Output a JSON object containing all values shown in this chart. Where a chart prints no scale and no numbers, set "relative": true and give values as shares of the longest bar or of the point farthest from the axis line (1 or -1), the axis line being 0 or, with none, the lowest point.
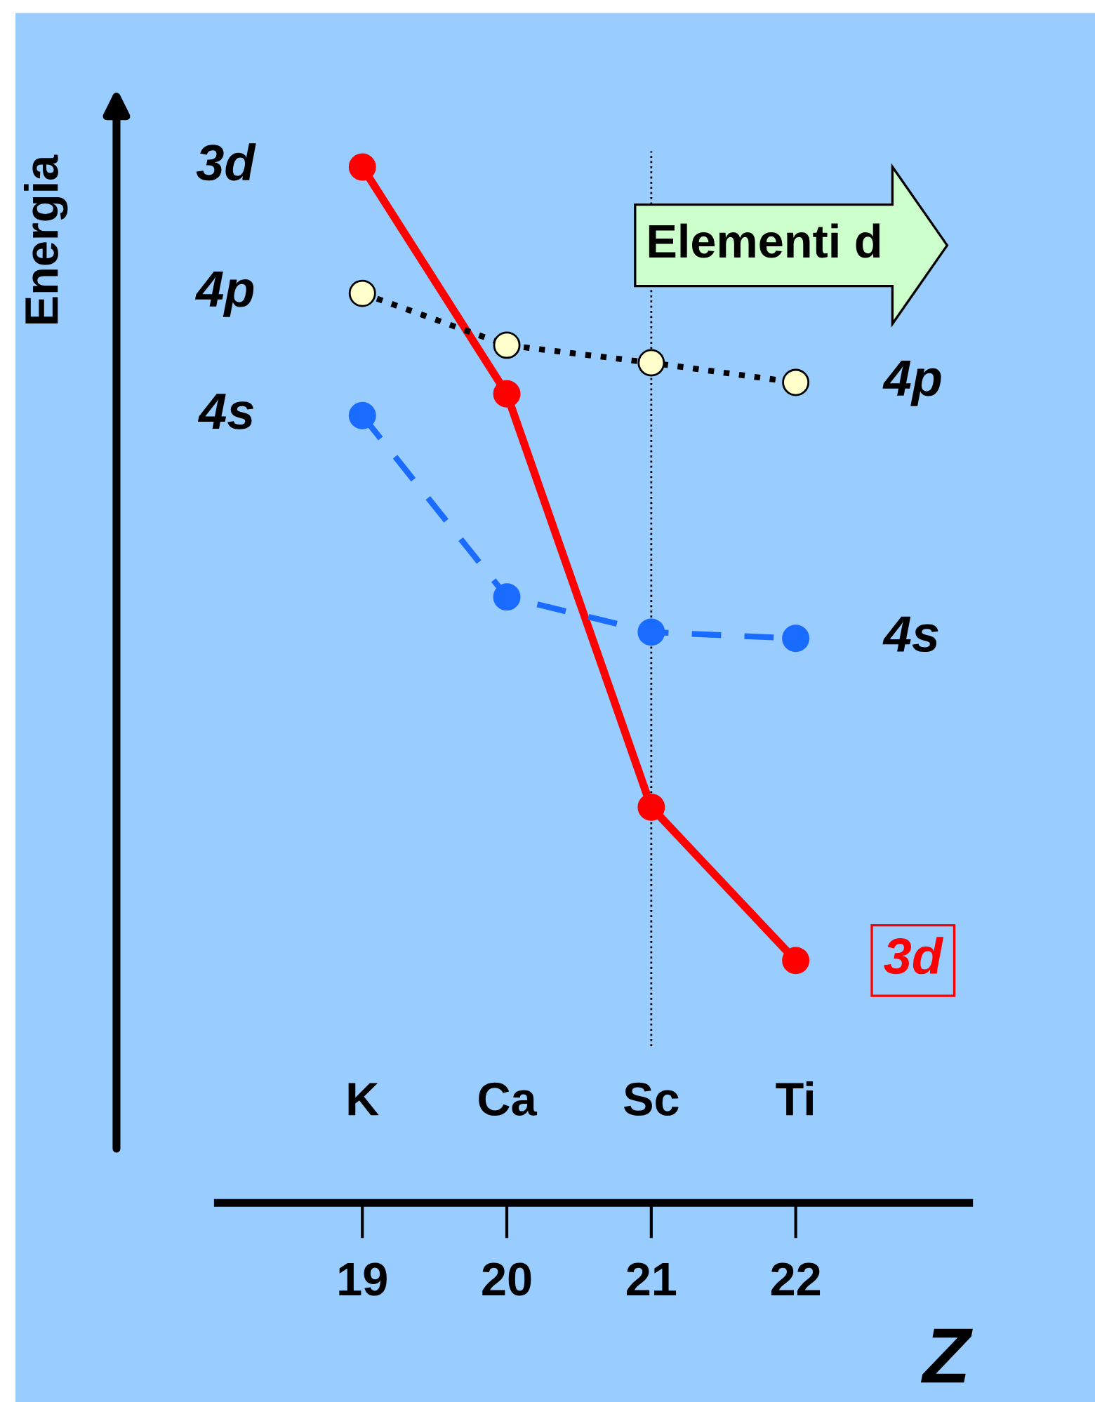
{
  "chart_data": {
    "type": "line",
    "relative": true,
    "ylabel": "Energia",
    "xlabel": "Z",
    "x": [
      19,
      20,
      21,
      22
    ],
    "xlim": [
      18,
      23.2
    ],
    "xticks": [
      19,
      20,
      21,
      22
    ],
    "marker": "circle",
    "grid": false,
    "legend": false,
    "series": [
      {
        "name": "3d",
        "color": "#ff0000",
        "line_style": "solid",
        "values": [
          1.0,
          0.781,
          0.382,
          0.234
        ]
      },
      {
        "name": "4p",
        "color": "#ffffcc",
        "line_style": "dotted",
        "values": [
          0.878,
          0.828,
          0.811,
          0.792
        ]
      },
      {
        "name": "4s",
        "color": "#1a6bff",
        "line_style": "dashed",
        "values": [
          0.76,
          0.585,
          0.551,
          0.545
        ]
      }
    ],
    "ref_lines": [
      {
        "axis": "x",
        "value": 21,
        "color": "#000000",
        "line_style": "dotted"
      }
    ],
    "annotations": [
      "3d",
      "4p",
      "4s",
      "Elementi d",
      "K",
      "Ca",
      "Sc",
      "Ti"
    ]
  }
}
